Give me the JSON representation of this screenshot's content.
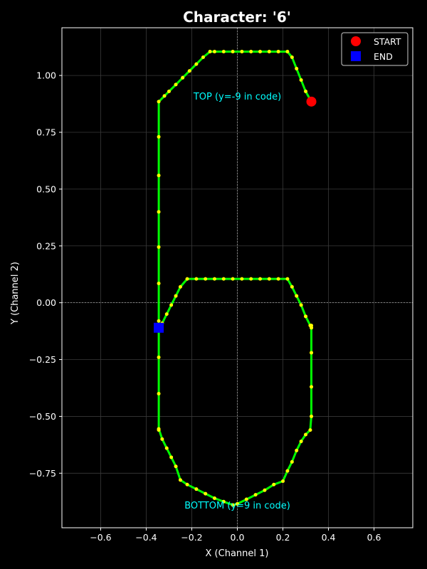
{
  "chart_data": {
    "type": "line",
    "title": "Character: '6'",
    "xlabel": "X (Channel 1)",
    "ylabel": "Y (Channel 2)",
    "xlim": [
      -0.77,
      0.77
    ],
    "ylim": [
      -0.99,
      1.21
    ],
    "xticks": [
      -0.6,
      -0.4,
      -0.2,
      0.0,
      0.2,
      0.4,
      0.6
    ],
    "xtick_labels": [
      "−0.6",
      "−0.4",
      "−0.2",
      "0.0",
      "0.2",
      "0.4",
      "0.6"
    ],
    "yticks": [
      -0.75,
      -0.5,
      -0.25,
      0.0,
      0.25,
      0.5,
      0.75,
      1.0
    ],
    "ytick_labels": [
      "−0.75",
      "−0.50",
      "−0.25",
      "0.00",
      "0.25",
      "0.50",
      "0.75",
      "1.00"
    ],
    "grid": true,
    "legend_position": "top-right",
    "colors": {
      "background": "#000000",
      "line": "#00ff00",
      "points": "#ffff00",
      "start": "#ff0000",
      "end": "#0000ff",
      "annotation": "#00ffff",
      "grid": "#3a3a3a",
      "axis": "#ffffff"
    },
    "series": [
      {
        "x": [
          0.325,
          0.3,
          0.28,
          0.26,
          0.24,
          0.22,
          0.18,
          0.14,
          0.1,
          0.06,
          0.02,
          -0.02,
          -0.06,
          -0.1,
          -0.12,
          -0.15,
          -0.18,
          -0.21,
          -0.24,
          -0.27,
          -0.3,
          -0.32,
          -0.345,
          -0.345,
          -0.345,
          -0.345,
          -0.345,
          -0.345,
          -0.345,
          -0.345,
          -0.345,
          -0.345,
          -0.345,
          -0.33,
          -0.31,
          -0.29,
          -0.27,
          -0.25,
          -0.22,
          -0.18,
          -0.14,
          -0.1,
          -0.06,
          -0.02,
          0.0,
          0.04,
          0.08,
          0.12,
          0.16,
          0.2,
          0.22,
          0.24,
          0.26,
          0.28,
          0.3,
          0.32,
          0.325,
          0.325,
          0.325,
          0.325,
          0.325,
          0.325,
          0.32,
          0.3,
          0.28,
          0.26,
          0.24,
          0.22,
          0.18,
          0.14,
          0.1,
          0.06,
          0.02,
          -0.02,
          -0.06,
          -0.1,
          -0.14,
          -0.18,
          -0.22,
          -0.25,
          -0.27,
          -0.29,
          -0.31,
          -0.33,
          -0.345
        ],
        "y": [
          0.885,
          0.93,
          0.98,
          1.03,
          1.08,
          1.105,
          1.105,
          1.105,
          1.105,
          1.105,
          1.105,
          1.105,
          1.105,
          1.105,
          1.105,
          1.08,
          1.05,
          1.02,
          0.99,
          0.96,
          0.93,
          0.91,
          0.885,
          0.73,
          0.56,
          0.4,
          0.245,
          0.085,
          -0.08,
          -0.24,
          -0.4,
          -0.56,
          -0.555,
          -0.6,
          -0.64,
          -0.68,
          -0.72,
          -0.78,
          -0.8,
          -0.82,
          -0.84,
          -0.86,
          -0.875,
          -0.89,
          -0.885,
          -0.865,
          -0.845,
          -0.825,
          -0.8,
          -0.785,
          -0.74,
          -0.7,
          -0.65,
          -0.61,
          -0.58,
          -0.56,
          -0.5,
          -0.37,
          -0.22,
          -0.11,
          -0.1,
          -0.11,
          -0.1,
          -0.06,
          -0.01,
          0.03,
          0.07,
          0.105,
          0.105,
          0.105,
          0.105,
          0.105,
          0.105,
          0.105,
          0.105,
          0.105,
          0.105,
          0.105,
          0.105,
          0.07,
          0.03,
          -0.01,
          -0.05,
          -0.09,
          -0.11
        ]
      }
    ],
    "start_point": {
      "x": 0.325,
      "y": 0.885
    },
    "end_point": {
      "x": -0.345,
      "y": -0.11
    },
    "legend": [
      {
        "label": "START",
        "marker": "circle"
      },
      {
        "label": "END",
        "marker": "square"
      }
    ],
    "annotations": [
      {
        "text": "TOP (y=-9 in code)",
        "x": 0.0,
        "y": 0.91
      },
      {
        "text": "BOTTOM (y=9 in code)",
        "x": 0.0,
        "y": -0.89
      }
    ]
  }
}
